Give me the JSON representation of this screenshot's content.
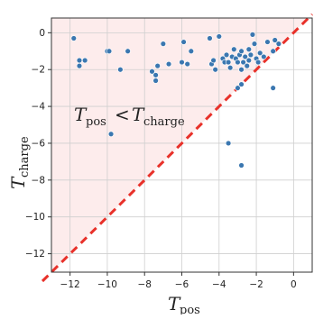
{
  "chart_data": {
    "type": "scatter",
    "title": "",
    "xlabel": "T",
    "xlabel_sub": "pos",
    "ylabel": "T",
    "ylabel_sub": "charge",
    "xlim": [
      -13,
      1
    ],
    "ylim": [
      -13,
      0.8
    ],
    "xticks": [
      -12,
      -10,
      -8,
      -6,
      -4,
      -2,
      0
    ],
    "xtick_labels": [
      "−12",
      "−10",
      "−8",
      "−6",
      "−4",
      "−2",
      "0"
    ],
    "yticks": [
      0,
      -2,
      -4,
      -6,
      -8,
      -10,
      -12
    ],
    "ytick_labels": [
      "0",
      "−2",
      "−4",
      "−6",
      "−8",
      "−10",
      "−12"
    ],
    "grid": true,
    "diagonal": {
      "style": "dashed",
      "color": "#e8312a",
      "from": [
        -13,
        -13
      ],
      "to": [
        1,
        1
      ]
    },
    "region": {
      "description": "shaded triangle above diagonal",
      "color": "#fdecec"
    },
    "annotation": {
      "main": "T",
      "sub1": "pos",
      "op": "<",
      "main2": "T",
      "sub2": "charge"
    },
    "point_color": "#3b77b0",
    "points": [
      {
        "x": -11.8,
        "y": -0.3
      },
      {
        "x": -11.5,
        "y": -1.5
      },
      {
        "x": -11.5,
        "y": -1.8
      },
      {
        "x": -11.2,
        "y": -1.5
      },
      {
        "x": -10.0,
        "y": -1.0
      },
      {
        "x": -9.9,
        "y": -1.0
      },
      {
        "x": -9.3,
        "y": -2.0
      },
      {
        "x": -8.9,
        "y": -1.0
      },
      {
        "x": -9.8,
        "y": -5.5
      },
      {
        "x": -7.6,
        "y": -2.1
      },
      {
        "x": -7.4,
        "y": -2.6
      },
      {
        "x": -7.4,
        "y": -2.3
      },
      {
        "x": -7.3,
        "y": -1.8
      },
      {
        "x": -7.0,
        "y": -0.6
      },
      {
        "x": -6.7,
        "y": -1.7
      },
      {
        "x": -6.0,
        "y": -1.6
      },
      {
        "x": -5.9,
        "y": -0.5
      },
      {
        "x": -5.7,
        "y": -1.7
      },
      {
        "x": -5.5,
        "y": -1.0
      },
      {
        "x": -4.5,
        "y": -0.3
      },
      {
        "x": -4.4,
        "y": -1.7
      },
      {
        "x": -4.3,
        "y": -1.5
      },
      {
        "x": -4.2,
        "y": -2.0
      },
      {
        "x": -4.0,
        "y": -0.2
      },
      {
        "x": -3.8,
        "y": -1.4
      },
      {
        "x": -3.7,
        "y": -1.6
      },
      {
        "x": -3.6,
        "y": -1.2
      },
      {
        "x": -3.5,
        "y": -1.6
      },
      {
        "x": -3.4,
        "y": -1.9
      },
      {
        "x": -3.3,
        "y": -1.3
      },
      {
        "x": -3.2,
        "y": -0.9
      },
      {
        "x": -3.1,
        "y": -1.4
      },
      {
        "x": -3.0,
        "y": -1.6
      },
      {
        "x": -2.9,
        "y": -1.2
      },
      {
        "x": -2.8,
        "y": -2.0
      },
      {
        "x": -2.8,
        "y": -1.0
      },
      {
        "x": -2.7,
        "y": -1.6
      },
      {
        "x": -2.6,
        "y": -1.3
      },
      {
        "x": -2.5,
        "y": -1.8
      },
      {
        "x": -2.4,
        "y": -0.9
      },
      {
        "x": -2.4,
        "y": -1.5
      },
      {
        "x": -2.3,
        "y": -1.2
      },
      {
        "x": -2.2,
        "y": -0.1
      },
      {
        "x": -2.1,
        "y": -0.6
      },
      {
        "x": -2.0,
        "y": -1.4
      },
      {
        "x": -1.9,
        "y": -1.6
      },
      {
        "x": -1.8,
        "y": -1.1
      },
      {
        "x": -1.6,
        "y": -1.3
      },
      {
        "x": -1.4,
        "y": -0.5
      },
      {
        "x": -1.1,
        "y": -1.0
      },
      {
        "x": -1.0,
        "y": -0.4
      },
      {
        "x": -0.8,
        "y": -0.6
      },
      {
        "x": -3.0,
        "y": -3.0
      },
      {
        "x": -2.8,
        "y": -2.8
      },
      {
        "x": -1.1,
        "y": -3.0
      },
      {
        "x": -3.5,
        "y": -6.0
      },
      {
        "x": -2.8,
        "y": -7.2
      }
    ]
  }
}
